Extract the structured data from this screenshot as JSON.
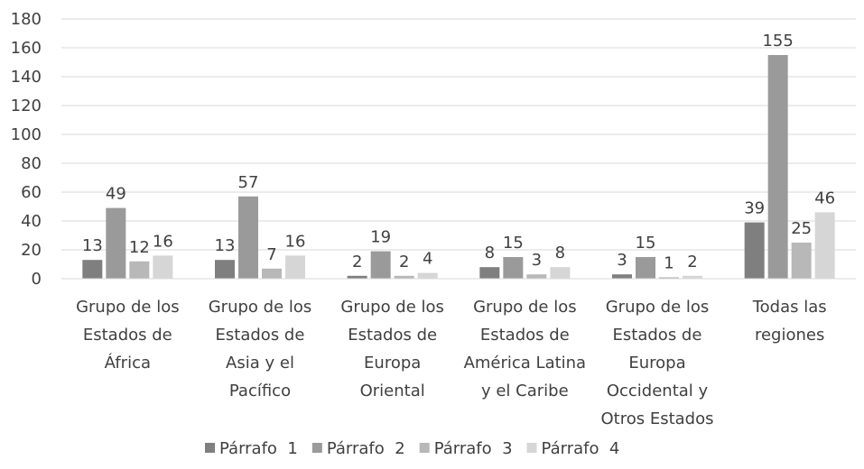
{
  "chart_data": {
    "type": "bar",
    "categories": [
      [
        "Grupo de los",
        "Estados de",
        "África"
      ],
      [
        "Grupo de los",
        "Estados de",
        "Asia y el",
        "Pacífico"
      ],
      [
        "Grupo de los",
        "Estados de",
        "Europa",
        "Oriental"
      ],
      [
        "Grupo de los",
        "Estados de",
        "América Latina",
        "y el Caribe"
      ],
      [
        "Grupo de los",
        "Estados de",
        "Europa",
        "Occidental y",
        "Otros Estados"
      ],
      [
        "Todas las",
        "regiones"
      ]
    ],
    "series": [
      {
        "name": "Párrafo  1",
        "color": "#7f7f7f",
        "values": [
          13,
          13,
          2,
          8,
          3,
          39
        ]
      },
      {
        "name": "Párrafo  2",
        "color": "#9a9a9a",
        "values": [
          49,
          57,
          19,
          15,
          15,
          155
        ]
      },
      {
        "name": "Párrafo  3",
        "color": "#b8b8b8",
        "values": [
          12,
          7,
          2,
          3,
          1,
          25
        ]
      },
      {
        "name": "Párrafo  4",
        "color": "#d6d6d6",
        "values": [
          16,
          16,
          4,
          8,
          2,
          46
        ]
      }
    ],
    "y_ticks": [
      0,
      20,
      40,
      60,
      80,
      100,
      120,
      140,
      160,
      180
    ],
    "ylim": [
      0,
      180
    ],
    "grid": true,
    "legend": "bottom",
    "data_labels": true
  }
}
